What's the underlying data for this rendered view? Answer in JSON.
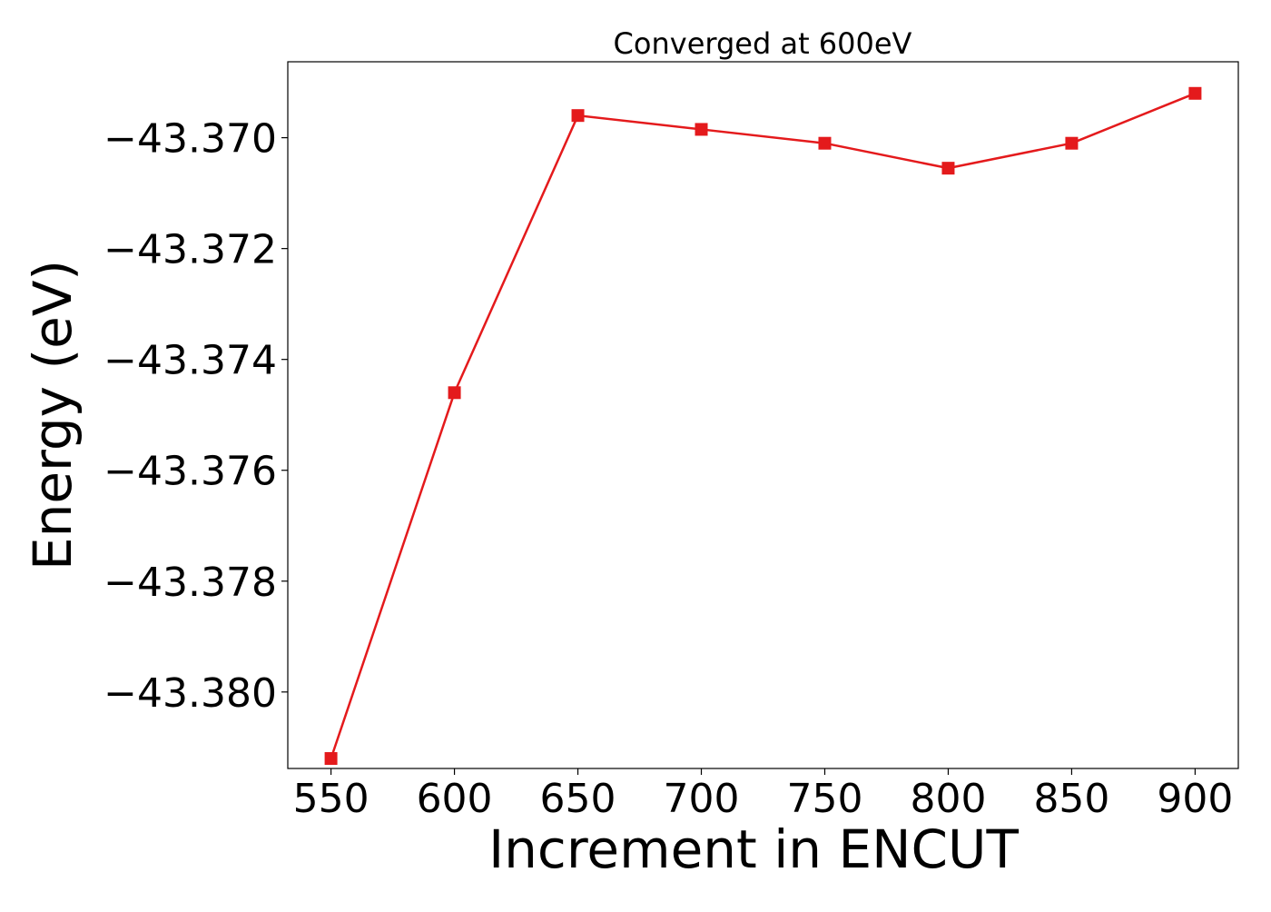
{
  "chart_data": {
    "type": "line",
    "title": "Converged at 600eV",
    "xlabel": "Increment in ENCUT",
    "ylabel": "Energy (eV)",
    "x": [
      550,
      600,
      650,
      700,
      750,
      800,
      850,
      900
    ],
    "series": [
      {
        "values": [
          -43.3812,
          -43.3746,
          -43.3696,
          -43.36985,
          -43.3701,
          -43.37055,
          -43.3701,
          -43.3692
        ]
      }
    ],
    "x_ticks": [
      550,
      600,
      650,
      700,
      750,
      800,
      850,
      900
    ],
    "x_tick_labels": [
      "550",
      "600",
      "650",
      "700",
      "750",
      "800",
      "850",
      "900"
    ],
    "y_ticks": [
      -43.37,
      -43.372,
      -43.374,
      -43.376,
      -43.378,
      -43.38
    ],
    "y_tick_labels": [
      "−43.370",
      "−43.372",
      "−43.374",
      "−43.376",
      "−43.378",
      "−43.380"
    ],
    "xlim": [
      532.5,
      917.5
    ],
    "ylim": [
      -43.38138,
      -43.36863
    ],
    "grid": false,
    "line_color": "#e41a1c",
    "marker": "square"
  }
}
